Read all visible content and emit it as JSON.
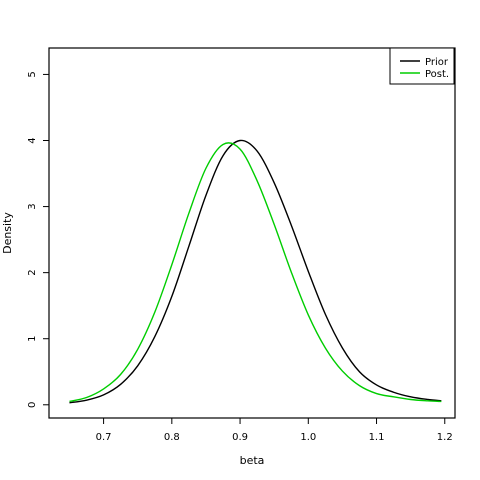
{
  "chart_data": {
    "type": "line",
    "title": "",
    "xlabel": "beta",
    "ylabel": "Density",
    "xlim": [
      0.62,
      1.215
    ],
    "ylim": [
      -0.2,
      5.4
    ],
    "xticks": [
      0.7,
      0.8,
      0.9,
      1.0,
      1.1,
      1.2
    ],
    "xtick_labels": [
      "0.7",
      "0.8",
      "0.9",
      "1.0",
      "1.1",
      "1.2"
    ],
    "yticks": [
      0,
      1,
      2,
      3,
      4,
      5
    ],
    "ytick_labels": [
      "0",
      "1",
      "2",
      "3",
      "4",
      "5"
    ],
    "grid": false,
    "legend_position": "top-right",
    "series": [
      {
        "name": "Prior",
        "color": "#000000",
        "x": [
          0.65,
          0.675,
          0.7,
          0.725,
          0.75,
          0.775,
          0.8,
          0.825,
          0.85,
          0.875,
          0.9,
          0.925,
          0.95,
          0.975,
          1.0,
          1.025,
          1.05,
          1.075,
          1.1,
          1.125,
          1.15,
          1.175,
          1.195
        ],
        "values": [
          0.03,
          0.07,
          0.15,
          0.31,
          0.59,
          1.03,
          1.64,
          2.4,
          3.17,
          3.77,
          4.0,
          3.84,
          3.36,
          2.72,
          2.02,
          1.37,
          0.86,
          0.5,
          0.3,
          0.19,
          0.12,
          0.08,
          0.06
        ]
      },
      {
        "name": "Post.",
        "color": "#00cd00",
        "x": [
          0.65,
          0.675,
          0.7,
          0.725,
          0.75,
          0.775,
          0.8,
          0.825,
          0.85,
          0.875,
          0.9,
          0.925,
          0.95,
          0.975,
          1.0,
          1.025,
          1.05,
          1.075,
          1.1,
          1.125,
          1.15,
          1.175,
          1.195
        ],
        "values": [
          0.05,
          0.11,
          0.24,
          0.46,
          0.84,
          1.4,
          2.12,
          2.9,
          3.58,
          3.94,
          3.87,
          3.39,
          2.73,
          2.01,
          1.36,
          0.86,
          0.51,
          0.29,
          0.17,
          0.12,
          0.08,
          0.06,
          0.05
        ]
      }
    ]
  }
}
